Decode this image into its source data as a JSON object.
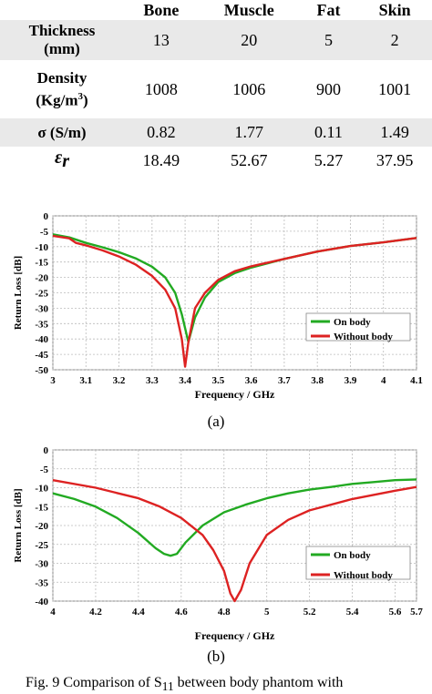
{
  "table": {
    "columns": [
      "Bone",
      "Muscle",
      "Fat",
      "Skin"
    ],
    "rows": [
      {
        "label_line1": "Thickness",
        "label_line2": "(mm)",
        "values": [
          "13",
          "20",
          "5",
          "2"
        ]
      },
      {
        "label_line1": "Density",
        "label_line2": "(Kg/m",
        "label_sup": "3",
        "label_tail": ")",
        "values": [
          "1008",
          "1006",
          "900",
          "1001"
        ]
      },
      {
        "label": "σ (S/m)",
        "values": [
          "0.82",
          "1.77",
          "0.11",
          "1.49"
        ]
      },
      {
        "label": "ε",
        "label_sub": "r",
        "values": [
          "18.49",
          "52.67",
          "5.27",
          "37.95"
        ]
      }
    ]
  },
  "chart_data": [
    {
      "type": "line",
      "xlabel": "Frequency / GHz",
      "ylabel": "Return Loss [dB]",
      "xlim": [
        3,
        4.1
      ],
      "ylim": [
        -50,
        0
      ],
      "xticks": [
        "3",
        "3.1",
        "3.2",
        "3.3",
        "3.4",
        "3.5",
        "3.6",
        "3.7",
        "3.8",
        "3.9",
        "4",
        "4.1"
      ],
      "yticks": [
        "0",
        "-5",
        "-10",
        "-15",
        "-20",
        "-25",
        "-30",
        "-35",
        "-40",
        "-45",
        "-50"
      ],
      "grid": true,
      "legend_position": "bottom-right",
      "series": [
        {
          "name": "On body",
          "color": "#22aa22",
          "x": [
            3.0,
            3.05,
            3.1,
            3.15,
            3.2,
            3.25,
            3.3,
            3.34,
            3.37,
            3.39,
            3.41,
            3.43,
            3.46,
            3.5,
            3.55,
            3.6,
            3.7,
            3.8,
            3.9,
            4.0,
            4.1
          ],
          "y": [
            -6.0,
            -7.0,
            -8.8,
            -10.2,
            -11.8,
            -13.8,
            -16.5,
            -20.0,
            -25.0,
            -32.0,
            -41.0,
            -33.0,
            -26.5,
            -21.5,
            -18.6,
            -16.8,
            -14.0,
            -11.6,
            -9.8,
            -8.6,
            -7.2
          ]
        },
        {
          "name": "Without body",
          "color": "#dd2222",
          "x": [
            3.0,
            3.05,
            3.07,
            3.1,
            3.15,
            3.2,
            3.25,
            3.3,
            3.34,
            3.37,
            3.39,
            3.4,
            3.41,
            3.43,
            3.46,
            3.5,
            3.55,
            3.6,
            3.7,
            3.8,
            3.9,
            4.0,
            4.1
          ],
          "y": [
            -6.5,
            -7.3,
            -8.8,
            -9.6,
            -11.2,
            -13.2,
            -15.8,
            -19.5,
            -24.0,
            -30.0,
            -40.0,
            -49.0,
            -41.0,
            -30.0,
            -25.0,
            -20.8,
            -18.0,
            -16.4,
            -14.0,
            -11.6,
            -9.8,
            -8.6,
            -7.2
          ]
        }
      ]
    },
    {
      "type": "line",
      "xlabel": "Frequency / GHz",
      "ylabel": "Return Loss [dB]",
      "xlim": [
        4,
        5.7
      ],
      "ylim": [
        -40,
        0
      ],
      "xticks": [
        "4",
        "4.2",
        "4.4",
        "4.6",
        "4.8",
        "5",
        "5.2",
        "5.4",
        "5.6",
        "5.7"
      ],
      "yticks": [
        "0",
        "-5",
        "-10",
        "-15",
        "-20",
        "-25",
        "-30",
        "-35",
        "-40"
      ],
      "grid": true,
      "legend_position": "bottom-right",
      "series": [
        {
          "name": "On body",
          "color": "#22aa22",
          "x": [
            4.0,
            4.1,
            4.2,
            4.3,
            4.4,
            4.48,
            4.52,
            4.55,
            4.58,
            4.62,
            4.7,
            4.8,
            4.9,
            5.0,
            5.1,
            5.2,
            5.3,
            5.4,
            5.5,
            5.6,
            5.7
          ],
          "y": [
            -11.5,
            -13.0,
            -15.0,
            -18.0,
            -22.0,
            -26.0,
            -27.5,
            -28.0,
            -27.5,
            -24.5,
            -20.0,
            -16.5,
            -14.5,
            -12.8,
            -11.5,
            -10.5,
            -9.8,
            -9.0,
            -8.5,
            -8.0,
            -7.8
          ]
        },
        {
          "name": "Without body",
          "color": "#dd2222",
          "x": [
            4.0,
            4.2,
            4.4,
            4.5,
            4.6,
            4.7,
            4.75,
            4.8,
            4.83,
            4.85,
            4.88,
            4.92,
            5.0,
            5.1,
            5.2,
            5.4,
            5.6,
            5.7
          ],
          "y": [
            -8.0,
            -10.0,
            -12.8,
            -15.0,
            -18.0,
            -22.5,
            -26.5,
            -32.0,
            -38.0,
            -40.0,
            -37.0,
            -30.0,
            -22.5,
            -18.5,
            -16.0,
            -13.0,
            -10.8,
            -9.8
          ]
        }
      ]
    }
  ],
  "captions": {
    "a": "(a)",
    "b": "(b)"
  },
  "figure_caption": "Fig. 9 Comparison of S",
  "figure_caption_sub": "11",
  "figure_caption_tail": " between body phantom with"
}
